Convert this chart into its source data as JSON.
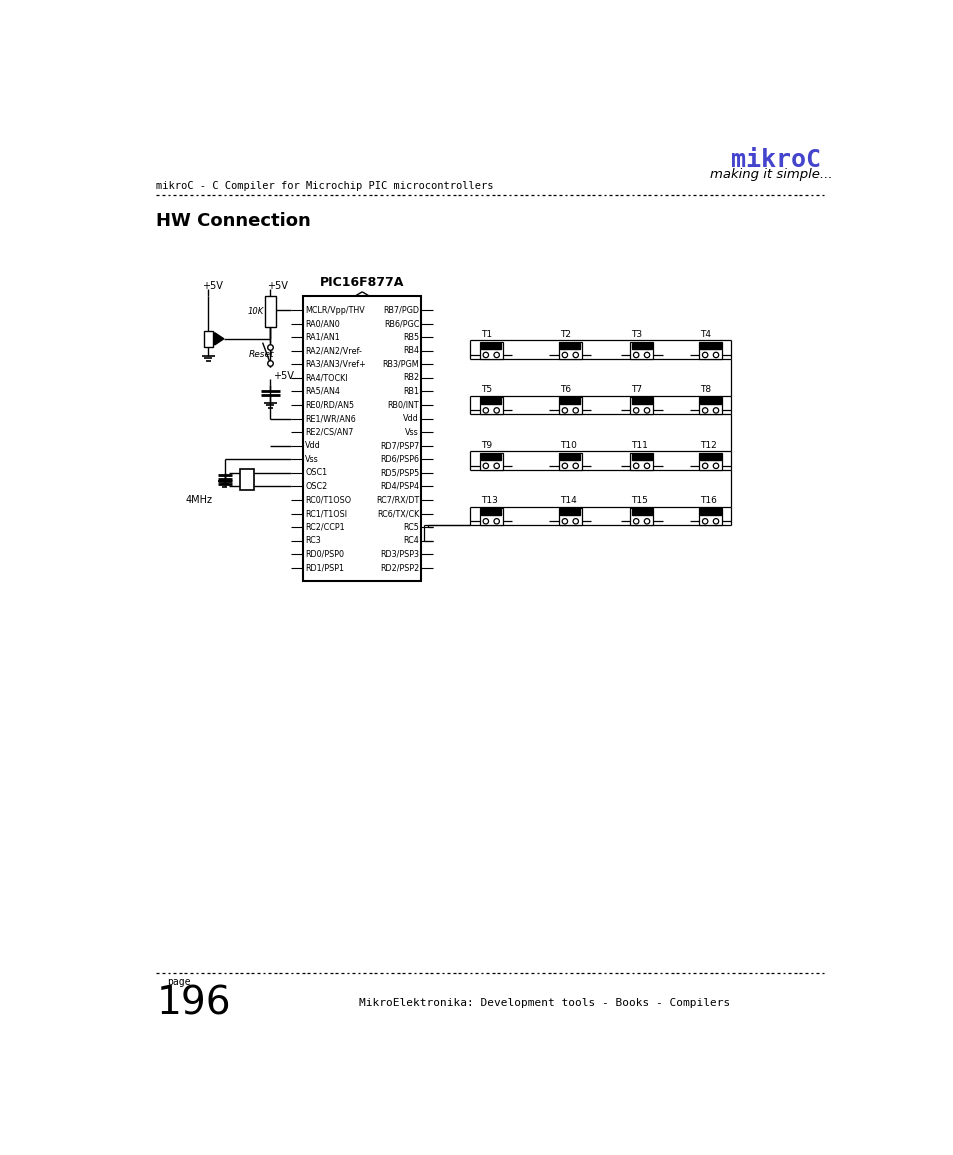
{
  "title": "HW Connection",
  "header_left": "mikroC - C Compiler for Microchip PIC microcontrollers",
  "header_right_title": "mikroC",
  "header_right_subtitle": "making it simple...",
  "footer_page_label": "page",
  "footer_page_number": "196",
  "footer_right": "MikroElektronika: Development tools - Books - Compilers",
  "ic_label": "PIC16F877A",
  "left_pins": [
    "MCLR/Vpp/THV",
    "RA0/AN0",
    "RA1/AN1",
    "RA2/AN2/Vref-",
    "RA3/AN3/Vref+",
    "RA4/TOCKI",
    "RA5/AN4",
    "RE0/RD/AN5",
    "RE1/WR/AN6",
    "RE2/CS/AN7",
    "Vdd",
    "Vss",
    "OSC1",
    "OSC2",
    "RC0/T1OSO",
    "RC1/T1OSI",
    "RC2/CCP1",
    "RC3",
    "RD0/PSP0",
    "RD1/PSP1"
  ],
  "right_pins": [
    "RB7/PGD",
    "RB6/PGC",
    "RB5",
    "RB4",
    "RB3/PGM",
    "RB2",
    "RB1",
    "RB0/INT",
    "Vdd",
    "Vss",
    "RD7/PSP7",
    "RD6/PSP6",
    "RD5/PSP5",
    "RD4/PSP4",
    "RC7/RX/DT",
    "RC6/TX/CK",
    "RC5",
    "RC4",
    "RD3/PSP3",
    "RD2/PSP2"
  ],
  "transistor_labels": [
    "T1",
    "T2",
    "T3",
    "T4",
    "T5",
    "T6",
    "T7",
    "T8",
    "T9",
    "T10",
    "T11",
    "T12",
    "T13",
    "T14",
    "T15",
    "T16"
  ],
  "bg_color": "#ffffff",
  "line_color": "#000000",
  "mikroc_color": "#4444cc"
}
